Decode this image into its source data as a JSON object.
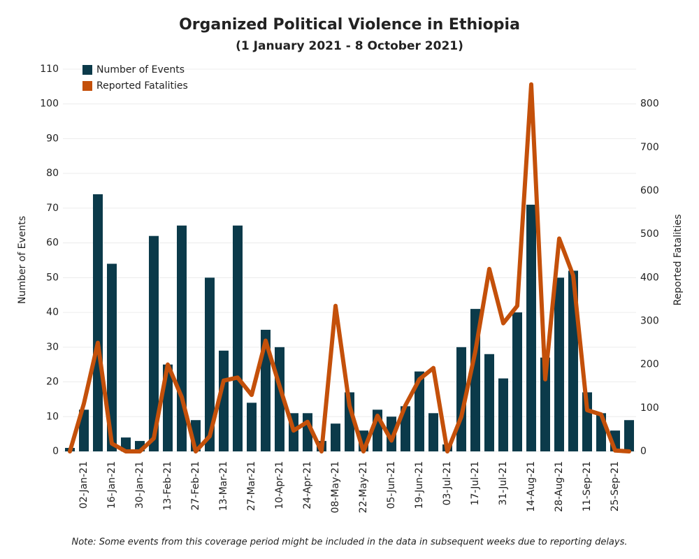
{
  "chart_data": {
    "type": "bar_line",
    "title": "Organized Political Violence in Ethiopia",
    "subtitle": "(1 January 2021 - 8 October 2021)",
    "y_label": "Number of Events",
    "y2_label": "Reported Fatalities",
    "note": "Note: Some events from this coverage period might be included in the data in subsequent weeks due to reporting delays.",
    "categories": [
      null,
      "02-Jan-21",
      null,
      "16-Jan-21",
      null,
      "30-Jan-21",
      null,
      "13-Feb-21",
      null,
      "27-Feb-21",
      null,
      "13-Mar-21",
      null,
      "27-Mar-21",
      null,
      "10-Apr-21",
      null,
      "24-Apr-21",
      null,
      "08-May-21",
      null,
      "22-May-21",
      null,
      "05-Jun-21",
      null,
      "19-Jun-21",
      null,
      "03-Jul-21",
      null,
      "17-Jul-21",
      null,
      "31-Jul-21",
      null,
      "14-Aug-21",
      null,
      "28-Aug-21",
      null,
      "11-Sep-21",
      null,
      "25-Sep-21",
      null
    ],
    "series": [
      {
        "name": "Number of Events",
        "color": "#0b3a4a",
        "kind": "bar",
        "values": [
          1,
          12,
          74,
          54,
          4,
          3,
          62,
          25,
          65,
          9,
          50,
          29,
          65,
          14,
          35,
          30,
          11,
          11,
          3,
          8,
          17,
          6,
          12,
          10,
          13,
          23,
          11,
          2,
          30,
          41,
          28,
          21,
          40,
          71,
          27,
          50,
          52,
          17,
          11,
          6,
          9
        ]
      },
      {
        "name": "Reported Fatalities",
        "color": "#c4500a",
        "kind": "line",
        "axis": "y2",
        "values": [
          0,
          110,
          250,
          18,
          0,
          0,
          30,
          200,
          125,
          0,
          35,
          163,
          170,
          130,
          255,
          150,
          48,
          68,
          0,
          335,
          105,
          0,
          82,
          25,
          106,
          166,
          192,
          0,
          80,
          230,
          420,
          295,
          335,
          845,
          166,
          490,
          405,
          95,
          85,
          2,
          0
        ]
      }
    ],
    "ylim": [
      0,
      110
    ],
    "yticks": [
      0,
      10,
      20,
      30,
      40,
      50,
      60,
      70,
      80,
      90,
      100,
      110
    ],
    "y2lim": [
      0,
      880
    ],
    "y2ticks": [
      0,
      100,
      200,
      300,
      400,
      500,
      600,
      700,
      800
    ],
    "grid": true,
    "legend": "top-left"
  }
}
